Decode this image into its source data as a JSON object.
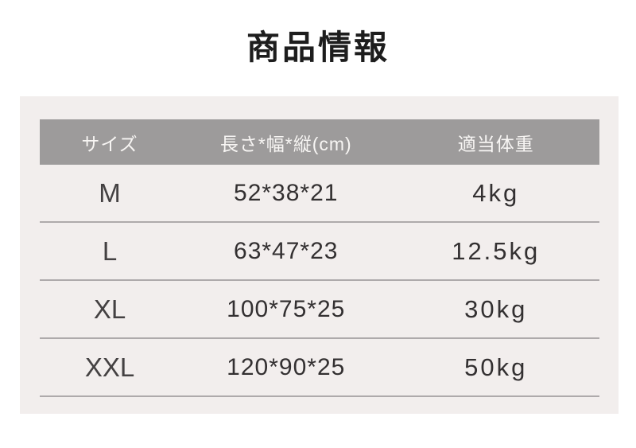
{
  "page": {
    "title": "商品情報"
  },
  "table": {
    "columns": [
      "サイズ",
      "長さ*幅*縦(cm)",
      "適当体重"
    ],
    "rows": [
      {
        "size": "M",
        "dimensions": "52*38*21",
        "weight": "4kg"
      },
      {
        "size": "L",
        "dimensions": "63*47*23",
        "weight": "12.5kg"
      },
      {
        "size": "XL",
        "dimensions": "100*75*25",
        "weight": "30kg"
      },
      {
        "size": "XXL",
        "dimensions": "120*90*25",
        "weight": "50kg"
      }
    ]
  },
  "colors": {
    "page_background": "#ffffff",
    "card_background": "#f2eeed",
    "header_background": "#9d9b9b",
    "header_text": "#f8f6f4",
    "body_text": "#333031",
    "divider": "#aeaaab",
    "title_text": "#1d1d1d"
  }
}
